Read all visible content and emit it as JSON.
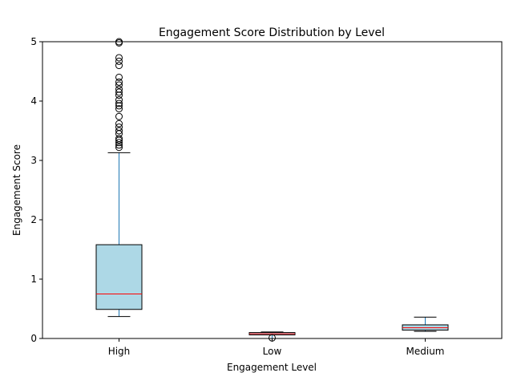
{
  "chart_data": {
    "type": "box",
    "title": "Engagement Score Distribution by Level",
    "xlabel": "Engagement Level",
    "ylabel": "Engagement Score",
    "ylim": [
      0,
      5
    ],
    "yticks": [
      0,
      1,
      2,
      3,
      4,
      5
    ],
    "categories": [
      "High",
      "Low",
      "Medium"
    ],
    "boxes": [
      {
        "category": "High",
        "whisker_low": 0.37,
        "q1": 0.49,
        "median": 0.75,
        "q3": 1.58,
        "whisker_high": 3.13,
        "outliers": [
          3.22,
          3.26,
          3.3,
          3.34,
          3.37,
          3.45,
          3.5,
          3.56,
          3.62,
          3.74,
          3.87,
          3.92,
          3.96,
          4.02,
          4.1,
          4.15,
          4.2,
          4.27,
          4.32,
          4.4,
          4.6,
          4.67,
          4.73,
          4.98,
          5.0
        ]
      },
      {
        "category": "Low",
        "whisker_low": 0.0,
        "q1": 0.06,
        "median": 0.08,
        "q3": 0.1,
        "whisker_high": 0.11,
        "outliers": [
          0.01
        ]
      },
      {
        "category": "Medium",
        "whisker_low": 0.12,
        "q1": 0.14,
        "median": 0.18,
        "q3": 0.23,
        "whisker_high": 0.36,
        "outliers": []
      }
    ],
    "colors": {
      "box_fill": "#add8e6",
      "box_edge": "#000000",
      "median": "#ff0000",
      "whisker": "#1f77b4",
      "cap": "#000000",
      "outlier": "#000000"
    },
    "grid": false
  }
}
